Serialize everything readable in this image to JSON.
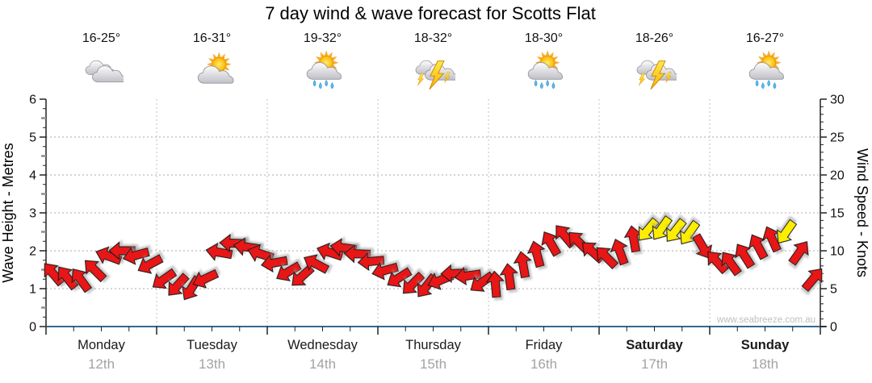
{
  "title": "7 day wind & wave forecast for Scotts Flat",
  "watermark": "www.seabreeze.com.au",
  "days": [
    {
      "name": "Monday",
      "date": "12th",
      "temp": "16-25°",
      "icon": "cloudy",
      "bold": false
    },
    {
      "name": "Tuesday",
      "date": "13th",
      "temp": "16-31°",
      "icon": "partly-cloudy",
      "bold": false
    },
    {
      "name": "Wednesday",
      "date": "14th",
      "temp": "19-32°",
      "icon": "sun-showers",
      "bold": false
    },
    {
      "name": "Thursday",
      "date": "15th",
      "temp": "18-32°",
      "icon": "thunderstorm",
      "bold": false
    },
    {
      "name": "Friday",
      "date": "16th",
      "temp": "18-30°",
      "icon": "sun-showers",
      "bold": false
    },
    {
      "name": "Saturday",
      "date": "17th",
      "temp": "18-26°",
      "icon": "thunderstorm",
      "bold": true
    },
    {
      "name": "Sunday",
      "date": "18th",
      "temp": "16-27°",
      "icon": "sun-showers",
      "bold": true
    }
  ],
  "chart_data": {
    "type": "wind-arrow-series",
    "steps_per_day": 8,
    "left_axis": {
      "label": "Wave Height - Metres",
      "min": 0,
      "max": 6,
      "tick_labels": [
        "0",
        "1",
        "2",
        "3",
        "4",
        "5",
        "6"
      ]
    },
    "right_axis": {
      "label": "Wind Speed - Knots",
      "min": 0,
      "max": 30,
      "tick_labels": [
        "0",
        "5",
        "10",
        "15",
        "20",
        "25",
        "30"
      ]
    },
    "grid": {
      "horizontal_at_metres": [
        1,
        2,
        3,
        4,
        5
      ],
      "vertical_at_day_boundaries": true
    },
    "dir_convention": "degrees clockwise from up; arrow points where wind blows to",
    "arrows": [
      {
        "kn": 7.0,
        "dir": -40,
        "col": "red"
      },
      {
        "kn": 6.5,
        "dir": -38,
        "col": "red"
      },
      {
        "kn": 6.2,
        "dir": -36,
        "col": "red"
      },
      {
        "kn": 7.5,
        "dir": -45,
        "col": "red"
      },
      {
        "kn": 9.3,
        "dir": -70,
        "col": "red"
      },
      {
        "kn": 10.0,
        "dir": -90,
        "col": "red"
      },
      {
        "kn": 9.4,
        "dir": -105,
        "col": "red"
      },
      {
        "kn": 8.2,
        "dir": -118,
        "col": "red"
      },
      {
        "kn": 6.2,
        "dir": -125,
        "col": "red"
      },
      {
        "kn": 5.4,
        "dir": -138,
        "col": "red"
      },
      {
        "kn": 5.0,
        "dir": -148,
        "col": "red"
      },
      {
        "kn": 6.3,
        "dir": -115,
        "col": "red"
      },
      {
        "kn": 9.8,
        "dir": -80,
        "col": "red"
      },
      {
        "kn": 11.0,
        "dir": -88,
        "col": "red"
      },
      {
        "kn": 10.5,
        "dir": -82,
        "col": "red"
      },
      {
        "kn": 9.6,
        "dir": -72,
        "col": "red"
      },
      {
        "kn": 8.4,
        "dir": -100,
        "col": "red"
      },
      {
        "kn": 7.2,
        "dir": -120,
        "col": "red"
      },
      {
        "kn": 6.6,
        "dir": -132,
        "col": "red"
      },
      {
        "kn": 8.3,
        "dir": -62,
        "col": "red"
      },
      {
        "kn": 9.8,
        "dir": -72,
        "col": "red"
      },
      {
        "kn": 10.4,
        "dir": -82,
        "col": "red"
      },
      {
        "kn": 9.6,
        "dir": -88,
        "col": "red"
      },
      {
        "kn": 8.6,
        "dir": -95,
        "col": "red"
      },
      {
        "kn": 7.4,
        "dir": -105,
        "col": "red"
      },
      {
        "kn": 6.4,
        "dir": -122,
        "col": "red"
      },
      {
        "kn": 5.6,
        "dir": -135,
        "col": "red"
      },
      {
        "kn": 5.3,
        "dir": -142,
        "col": "red"
      },
      {
        "kn": 6.1,
        "dir": -112,
        "col": "red"
      },
      {
        "kn": 7.0,
        "dir": -92,
        "col": "red"
      },
      {
        "kn": 6.7,
        "dir": -98,
        "col": "red"
      },
      {
        "kn": 5.8,
        "dir": -125,
        "col": "red"
      },
      {
        "kn": 5.6,
        "dir": -5,
        "col": "red"
      },
      {
        "kn": 6.6,
        "dir": -8,
        "col": "red"
      },
      {
        "kn": 8.2,
        "dir": -10,
        "col": "red"
      },
      {
        "kn": 9.6,
        "dir": -15,
        "col": "red"
      },
      {
        "kn": 11.0,
        "dir": -30,
        "col": "red"
      },
      {
        "kn": 12.0,
        "dir": -40,
        "col": "red"
      },
      {
        "kn": 11.2,
        "dir": -45,
        "col": "red"
      },
      {
        "kn": 9.9,
        "dir": -48,
        "col": "red"
      },
      {
        "kn": 9.2,
        "dir": -45,
        "col": "red"
      },
      {
        "kn": 9.9,
        "dir": -20,
        "col": "red"
      },
      {
        "kn": 11.6,
        "dir": -10,
        "col": "red"
      },
      {
        "kn": 12.7,
        "dir": -140,
        "col": "yellow"
      },
      {
        "kn": 12.9,
        "dir": -145,
        "col": "yellow"
      },
      {
        "kn": 12.6,
        "dir": -142,
        "col": "yellow"
      },
      {
        "kn": 12.3,
        "dir": -145,
        "col": "yellow"
      },
      {
        "kn": 10.5,
        "dir": 150,
        "col": "red"
      },
      {
        "kn": 8.6,
        "dir": -42,
        "col": "red"
      },
      {
        "kn": 8.4,
        "dir": -36,
        "col": "red"
      },
      {
        "kn": 9.4,
        "dir": -32,
        "col": "red"
      },
      {
        "kn": 10.6,
        "dir": -28,
        "col": "red"
      },
      {
        "kn": 11.6,
        "dir": -24,
        "col": "red"
      },
      {
        "kn": 12.4,
        "dir": -145,
        "col": "yellow"
      },
      {
        "kn": 9.8,
        "dir": 35,
        "col": "red"
      },
      {
        "kn": 6.3,
        "dir": 40,
        "col": "red"
      }
    ],
    "colors": {
      "arrow_red": "#e81212",
      "arrow_yellow": "#fdee00",
      "arrow_outline": "#1a1a1a",
      "bottom_axis": "#336a8d",
      "axis": "#222222",
      "grid": "#ababab",
      "day_separator": "#c2c2c2",
      "date_text": "#a3a3a3",
      "watermark_text": "#c0c0c0"
    }
  }
}
